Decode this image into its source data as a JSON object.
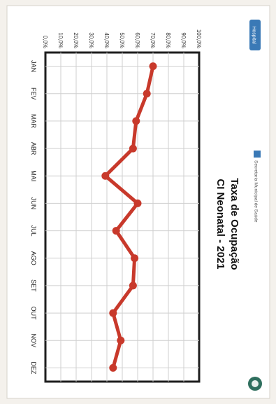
{
  "header": {
    "brand_text": "Hospital",
    "institution_text": "Secretaria Municipal de Saúde"
  },
  "colors": {
    "line": "#c8392b",
    "marker": "#c8392b",
    "plot_border": "#1e1e1e",
    "grid": "#cfcfcf",
    "badge": "#3a79b6"
  },
  "chart_data": {
    "type": "line",
    "title": "Taxa de Ocupação",
    "subtitle": "CI Neonatal - 2021",
    "categories": [
      "JAN",
      "FEV",
      "MAR",
      "ABR",
      "MAI",
      "JUN",
      "JUL",
      "AGO",
      "SET",
      "OUT",
      "NOV",
      "DEZ"
    ],
    "series": [
      {
        "values": [
          70,
          66,
          59,
          57,
          39,
          60,
          46,
          58,
          57,
          44,
          49,
          44
        ]
      }
    ],
    "y_ticks": [
      "0,0%",
      "10,0%",
      "20,0%",
      "30,0%",
      "40,0%",
      "50,0%",
      "60,0%",
      "70,0%",
      "80,0%",
      "90,0%",
      "100,0%"
    ],
    "ylim": [
      0,
      100
    ],
    "grid": true,
    "orientation": "rotated-90-clockwise"
  }
}
